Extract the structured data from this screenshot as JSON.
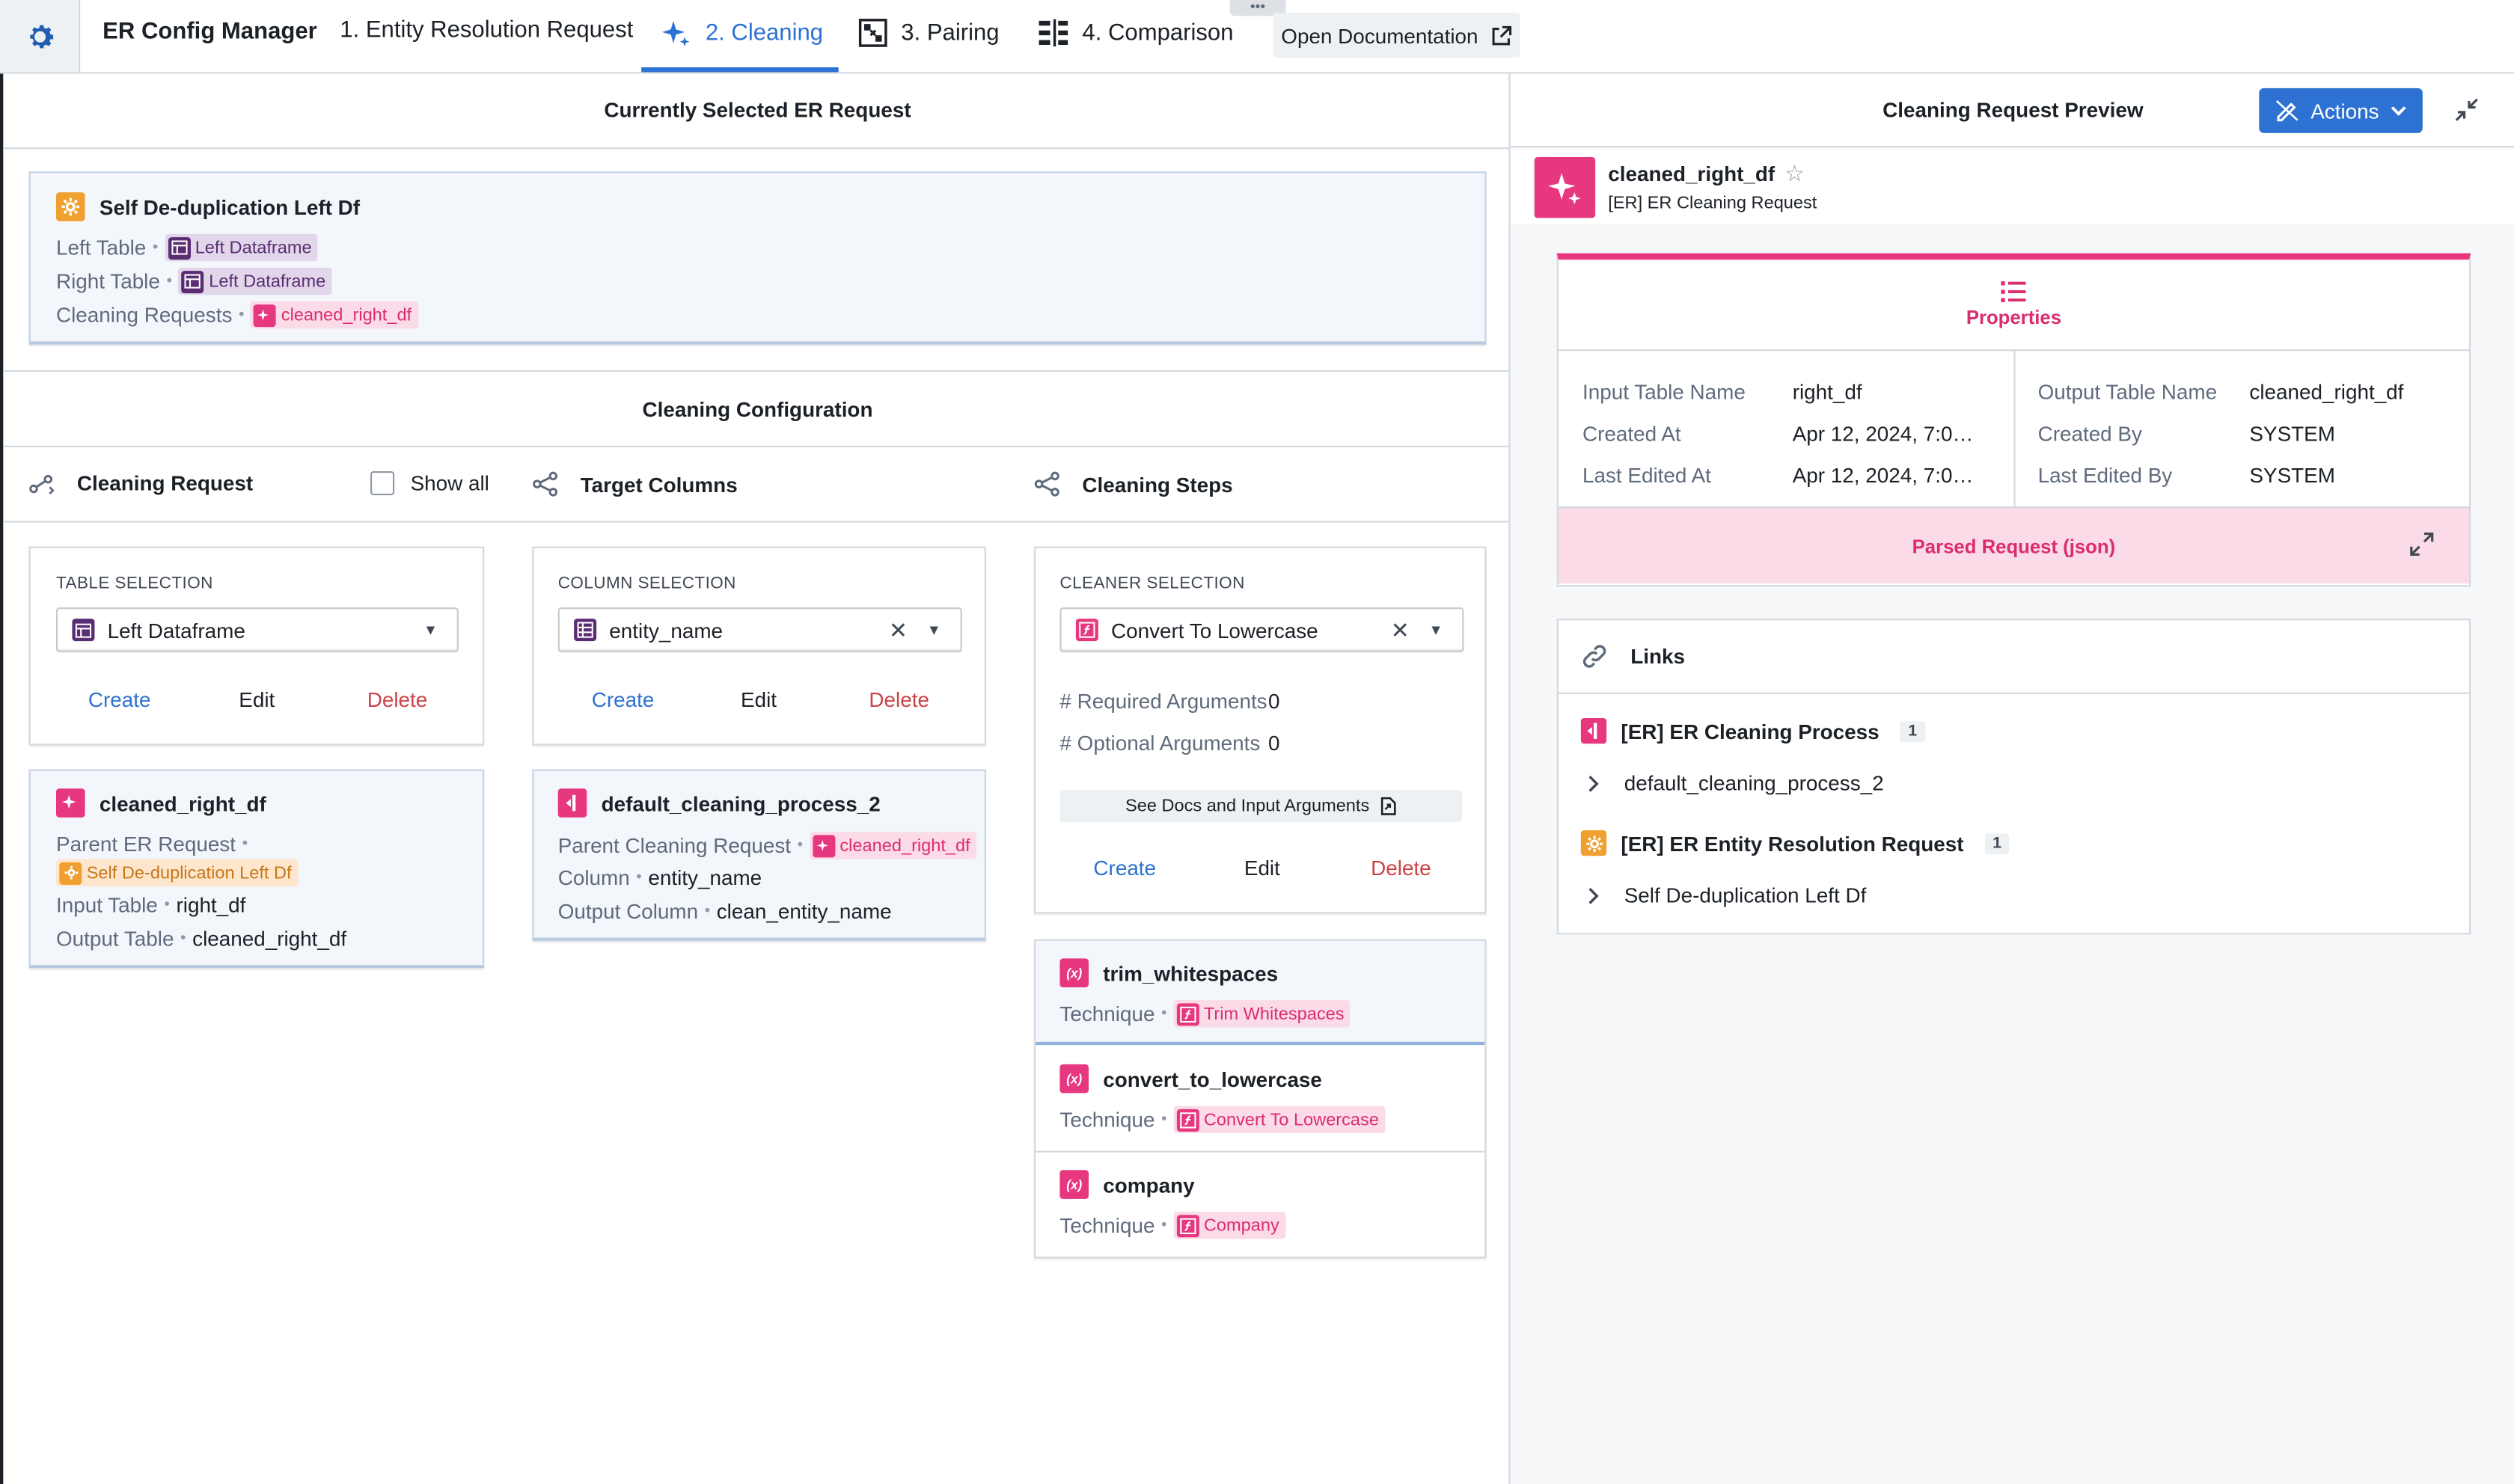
{
  "app": {
    "title": "ER Config Manager"
  },
  "tabs": [
    {
      "label": "1. Entity Resolution Request",
      "icon": "none"
    },
    {
      "label": "2. Cleaning",
      "icon": "sparkle-icon"
    },
    {
      "label": "3. Pairing",
      "icon": "pairing-icon"
    },
    {
      "label": "4. Comparison",
      "icon": "comparison-icon"
    }
  ],
  "open_docs_label": "Open Documentation",
  "drag_handle": "•••",
  "left": {
    "selected_header": "Currently Selected ER Request",
    "er_request": {
      "title": "Self De-duplication Left Df",
      "left_table_label": "Left Table",
      "left_table_value": "Left Dataframe",
      "right_table_label": "Right Table",
      "right_table_value": "Left Dataframe",
      "cleaning_requests_label": "Cleaning Requests",
      "cleaning_requests_value": "cleaned_right_df"
    },
    "cleaning_config_header": "Cleaning Configuration",
    "columns": {
      "cleaning_request": "Cleaning Request",
      "show_all": "Show all",
      "target_columns": "Target Columns",
      "cleaning_steps": "Cleaning Steps"
    },
    "table_selection": {
      "label": "TABLE SELECTION",
      "value": "Left Dataframe",
      "create": "Create",
      "edit": "Edit",
      "delete": "Delete"
    },
    "column_selection": {
      "label": "COLUMN SELECTION",
      "value": "entity_name",
      "create": "Create",
      "edit": "Edit",
      "delete": "Delete"
    },
    "cleaner_selection": {
      "label": "CLEANER SELECTION",
      "value": "Convert To Lowercase",
      "req_args_label": "# Required Arguments",
      "req_args_value": "0",
      "opt_args_label": "# Optional Arguments",
      "opt_args_value": "0",
      "docs_button": "See Docs and Input Arguments",
      "create": "Create",
      "edit": "Edit",
      "delete": "Delete"
    },
    "cleaning_request_card": {
      "title": "cleaned_right_df",
      "parent_label": "Parent ER Request",
      "parent_value": "Self De-duplication Left Df",
      "input_label": "Input Table",
      "input_value": "right_df",
      "output_label": "Output Table",
      "output_value": "cleaned_right_df"
    },
    "process_card": {
      "title": "default_cleaning_process_2",
      "parent_label": "Parent Cleaning Request",
      "parent_value": "cleaned_right_df",
      "column_label": "Column",
      "column_value": "entity_name",
      "output_label": "Output Column",
      "output_value": "clean_entity_name"
    },
    "steps": [
      {
        "title": "trim_whitespaces",
        "technique_label": "Technique",
        "technique": "Trim Whitespaces"
      },
      {
        "title": "convert_to_lowercase",
        "technique_label": "Technique",
        "technique": "Convert To Lowercase"
      },
      {
        "title": "company",
        "technique_label": "Technique",
        "technique": "Company"
      }
    ]
  },
  "right": {
    "header": "Cleaning Request Preview",
    "actions_label": "Actions",
    "object": {
      "title": "cleaned_right_df",
      "type": "[ER] ER Cleaning Request"
    },
    "properties_label": "Properties",
    "props_left": [
      {
        "k": "Input Table Name",
        "v": "right_df"
      },
      {
        "k": "Created At",
        "v": "Apr 12, 2024, 7:0…"
      },
      {
        "k": "Last Edited At",
        "v": "Apr 12, 2024, 7:0…"
      }
    ],
    "props_right": [
      {
        "k": "Output Table Name",
        "v": "cleaned_right_df"
      },
      {
        "k": "Created By",
        "v": "SYSTEM"
      },
      {
        "k": "Last Edited By",
        "v": "SYSTEM"
      }
    ],
    "parsed_label": "Parsed Request (json)",
    "links_label": "Links",
    "links": [
      {
        "type": "[ER] ER Cleaning Process",
        "count": "1",
        "item": "default_cleaning_process_2"
      },
      {
        "type": "[ER] ER Entity Resolution Request",
        "count": "1",
        "item": "Self De-duplication Left Df"
      }
    ]
  },
  "colors": {
    "accent": "#2d72d2",
    "pink": "#e6377f",
    "purple": "#5a2d72",
    "orange": "#f0a030",
    "danger": "#cd4246"
  }
}
